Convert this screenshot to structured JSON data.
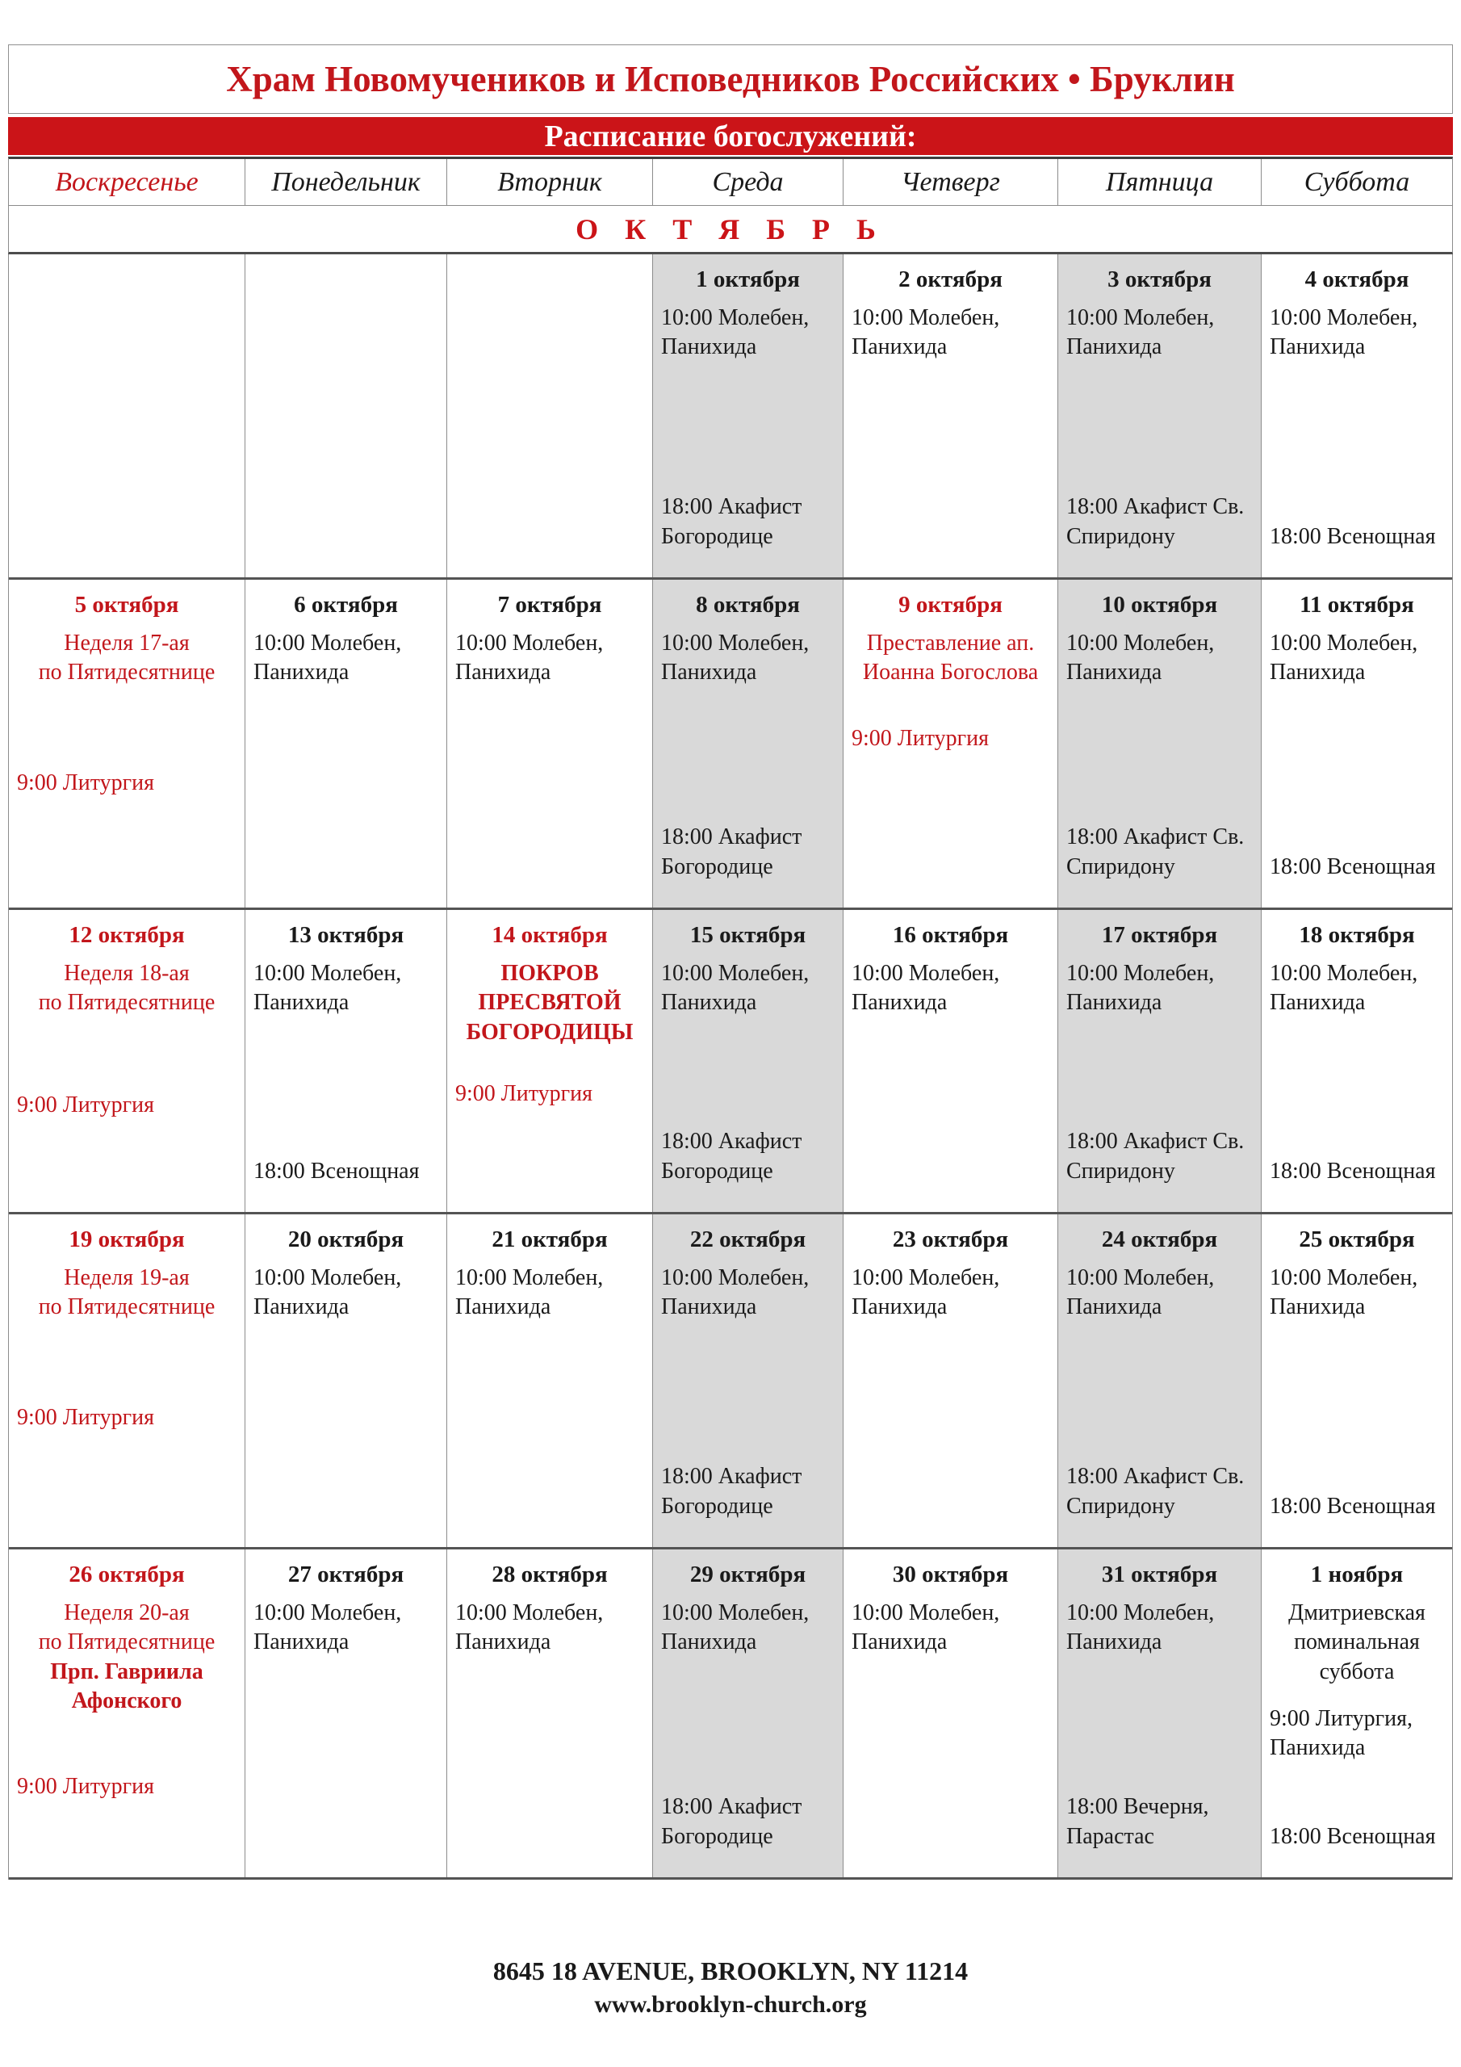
{
  "header": {
    "church_title": "Храм Новомучеников и Исповедников Российских • Бруклин",
    "banner": "Расписание богослужений:"
  },
  "day_headers": [
    "Воскресенье",
    "Понедельник",
    "Вторник",
    "Среда",
    "Четверг",
    "Пятница",
    "Суббота"
  ],
  "month_label": "О К Т Я Б Р Ь",
  "colors": {
    "accent_red": "#c2161b",
    "banner_red": "#cb1418",
    "shaded_cell": "#d9d9d9",
    "border_gray": "#8c8c8c"
  },
  "weeks": [
    [
      {},
      {},
      {},
      {
        "shaded": true,
        "date": "1 октября",
        "top": [
          {
            "t": "10:00 Молебен, Панихида"
          }
        ],
        "bottom": [
          {
            "t": "18:00 Акафист Богородице"
          }
        ]
      },
      {
        "date": "2 октября",
        "top": [
          {
            "t": "10:00 Молебен, Панихида"
          }
        ]
      },
      {
        "shaded": true,
        "date": "3 октября",
        "top": [
          {
            "t": "10:00 Молебен, Панихида"
          }
        ],
        "bottom": [
          {
            "t": "18:00 Акафист Св. Спиридону"
          }
        ]
      },
      {
        "date": "4 октября",
        "top": [
          {
            "t": "10:00 Молебен, Панихида"
          }
        ],
        "bottom": [
          {
            "t": "18:00 Всенощная"
          }
        ]
      }
    ],
    [
      {
        "date": "5 октября",
        "date_red": true,
        "top": [
          {
            "t": "Неделя 17-ая",
            "red": true,
            "center": true
          },
          {
            "t": "по Пятидесятнице",
            "red": true,
            "center": true
          },
          {
            "t": "9:00 Литургия",
            "red": true,
            "mt": 100
          }
        ]
      },
      {
        "date": "6 октября",
        "top": [
          {
            "t": "10:00 Молебен, Панихида"
          }
        ]
      },
      {
        "date": "7 октября",
        "top": [
          {
            "t": "10:00 Молебен, Панихида"
          }
        ]
      },
      {
        "shaded": true,
        "date": "8 октября",
        "top": [
          {
            "t": "10:00 Молебен, Панихида"
          }
        ],
        "bottom": [
          {
            "t": "18:00 Акафист Богородице"
          }
        ]
      },
      {
        "date": "9 октября",
        "date_red": true,
        "top": [
          {
            "t": "Преставление ап. Иоанна Богослова",
            "red": true,
            "center": true
          },
          {
            "t": "9:00 Литургия",
            "red": true,
            "mt": 45
          }
        ]
      },
      {
        "shaded": true,
        "date": "10 октября",
        "top": [
          {
            "t": "10:00 Молебен, Панихида"
          }
        ],
        "bottom": [
          {
            "t": "18:00 Акафист Св. Спиридону"
          }
        ]
      },
      {
        "date": "11 октября",
        "top": [
          {
            "t": "10:00 Молебен, Панихида"
          }
        ],
        "bottom": [
          {
            "t": "18:00 Всенощная"
          }
        ]
      }
    ],
    [
      {
        "date": "12 октября",
        "date_red": true,
        "top": [
          {
            "t": "Неделя 18-ая",
            "red": true,
            "center": true
          },
          {
            "t": "по Пятидесятнице",
            "red": true,
            "center": true
          },
          {
            "t": "9:00 Литургия",
            "red": true,
            "mt": 90
          }
        ]
      },
      {
        "date": "13 октября",
        "top": [
          {
            "t": "10:00 Молебен, Панихида"
          }
        ],
        "bottom": [
          {
            "t": "18:00 Всенощная"
          }
        ]
      },
      {
        "date": "14 октября",
        "date_red": true,
        "top": [
          {
            "t": "ПОКРОВ ПРЕСВЯТОЙ БОГОРОДИЦЫ",
            "red": true,
            "bold": true,
            "center": true
          },
          {
            "t": "9:00 Литургия",
            "red": true,
            "mt": 40
          }
        ]
      },
      {
        "shaded": true,
        "date": "15 октября",
        "top": [
          {
            "t": "10:00 Молебен, Панихида"
          }
        ],
        "bottom": [
          {
            "t": "18:00 Акафист Богородице"
          }
        ]
      },
      {
        "date": "16 октября",
        "top": [
          {
            "t": "10:00 Молебен, Панихида"
          }
        ]
      },
      {
        "shaded": true,
        "date": "17 октября",
        "top": [
          {
            "t": "10:00 Молебен, Панихида"
          }
        ],
        "bottom": [
          {
            "t": "18:00 Акафист Св. Спиридону"
          }
        ]
      },
      {
        "date": "18 октября",
        "top": [
          {
            "t": "10:00 Молебен, Панихида"
          }
        ],
        "bottom": [
          {
            "t": "18:00 Всенощная"
          }
        ]
      }
    ],
    [
      {
        "date": "19 октября",
        "date_red": true,
        "top": [
          {
            "t": "Неделя 19-ая",
            "red": true,
            "center": true
          },
          {
            "t": "по Пятидесятнице",
            "red": true,
            "center": true
          },
          {
            "t": "9:00 Литургия",
            "red": true,
            "mt": 100
          }
        ]
      },
      {
        "date": "20 октября",
        "top": [
          {
            "t": "10:00 Молебен, Панихида"
          }
        ]
      },
      {
        "date": "21 октября",
        "top": [
          {
            "t": "10:00 Молебен, Панихида"
          }
        ]
      },
      {
        "shaded": true,
        "date": "22 октября",
        "top": [
          {
            "t": "10:00 Молебен, Панихида"
          }
        ],
        "bottom": [
          {
            "t": "18:00 Акафист Богородице"
          }
        ]
      },
      {
        "date": "23 октября",
        "top": [
          {
            "t": "10:00 Молебен, Панихида"
          }
        ]
      },
      {
        "shaded": true,
        "date": "24 октября",
        "top": [
          {
            "t": "10:00 Молебен, Панихида"
          }
        ],
        "bottom": [
          {
            "t": "18:00 Акафист Св. Спиридону"
          }
        ]
      },
      {
        "date": "25 октября",
        "top": [
          {
            "t": "10:00 Молебен, Панихида"
          }
        ],
        "bottom": [
          {
            "t": "18:00 Всенощная"
          }
        ]
      }
    ],
    [
      {
        "date": "26 октября",
        "date_red": true,
        "top": [
          {
            "t": "Неделя 20-ая",
            "red": true,
            "center": true
          },
          {
            "t": "по Пятидесятнице",
            "red": true,
            "center": true
          },
          {
            "t": "Прп. Гавриила Афонского",
            "red": true,
            "bold": true,
            "center": true
          },
          {
            "t": "9:00 Литургия",
            "red": true,
            "mt": 70
          }
        ]
      },
      {
        "date": "27 октября",
        "top": [
          {
            "t": "10:00 Молебен, Панихида"
          }
        ]
      },
      {
        "date": "28 октября",
        "top": [
          {
            "t": "10:00 Молебен, Панихида"
          }
        ]
      },
      {
        "shaded": true,
        "date": "29 октября",
        "top": [
          {
            "t": "10:00 Молебен, Панихида"
          }
        ],
        "bottom": [
          {
            "t": "18:00 Акафист Богородице"
          }
        ]
      },
      {
        "date": "30 октября",
        "top": [
          {
            "t": "10:00 Молебен, Панихида"
          }
        ]
      },
      {
        "shaded": true,
        "date": "31 октября",
        "top": [
          {
            "t": "10:00 Молебен, Панихида"
          }
        ],
        "bottom": [
          {
            "t": "18:00 Вечерня, Парастас"
          }
        ]
      },
      {
        "date": "1 ноября",
        "top": [
          {
            "t": "Дмитриевская поминальная суббота",
            "center": true
          },
          {
            "t": "9:00 Литургия, Панихида",
            "mt": 22
          }
        ],
        "bottom": [
          {
            "t": "18:00 Всенощная"
          }
        ]
      }
    ]
  ],
  "footer": {
    "address": "8645 18 AVENUE, BROOKLYN, NY 11214",
    "website": "www.brooklyn-church.org"
  }
}
